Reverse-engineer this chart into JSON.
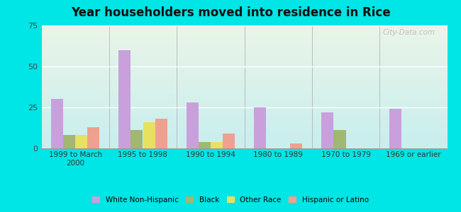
{
  "title": "Year householders moved into residence in Rice",
  "categories": [
    "1999 to March\n2000",
    "1995 to 1998",
    "1990 to 1994",
    "1980 to 1989",
    "1970 to 1979",
    "1969 or earlier"
  ],
  "series": {
    "White Non-Hispanic": [
      30,
      60,
      28,
      25,
      22,
      24
    ],
    "Black": [
      8,
      11,
      4,
      0,
      11,
      0
    ],
    "Other Race": [
      8,
      16,
      4,
      0,
      0,
      0
    ],
    "Hispanic or Latino": [
      13,
      18,
      9,
      3,
      0,
      0
    ]
  },
  "colors": {
    "White Non-Hispanic": "#c9a0dc",
    "Black": "#a0b870",
    "Other Race": "#e8e060",
    "Hispanic or Latino": "#f0a090"
  },
  "ylim": [
    0,
    75
  ],
  "yticks": [
    0,
    25,
    50,
    75
  ],
  "background_color": "#00e5e5",
  "plot_bg_top": "#eaf5e8",
  "plot_bg_bottom": "#c8eeee",
  "grid_color": "#ffffff",
  "bar_width": 0.18,
  "n_cats": 6
}
